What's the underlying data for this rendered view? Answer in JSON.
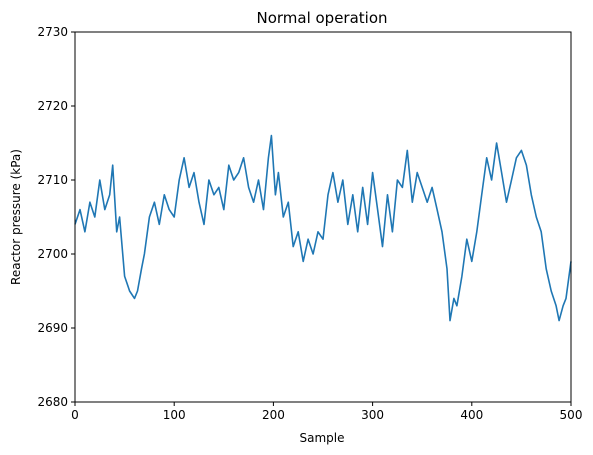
{
  "chart_data": {
    "type": "line",
    "title": "Normal operation",
    "xlabel": "Sample",
    "ylabel": "Reactor pressure (kPa)",
    "xlim": [
      0,
      500
    ],
    "ylim": [
      2680,
      2730
    ],
    "xticks": [
      0,
      100,
      200,
      300,
      400,
      500
    ],
    "yticks": [
      2680,
      2690,
      2700,
      2710,
      2720,
      2730
    ],
    "grid": false,
    "legend": "none",
    "series": [
      {
        "color": "#1f77b4",
        "x": [
          0,
          5,
          10,
          15,
          20,
          25,
          30,
          35,
          38,
          42,
          45,
          50,
          55,
          60,
          63,
          67,
          70,
          75,
          80,
          85,
          90,
          95,
          100,
          105,
          110,
          115,
          120,
          125,
          130,
          135,
          140,
          145,
          150,
          155,
          160,
          165,
          170,
          175,
          180,
          185,
          190,
          195,
          198,
          202,
          205,
          210,
          215,
          220,
          225,
          230,
          235,
          240,
          245,
          250,
          255,
          260,
          265,
          270,
          275,
          280,
          285,
          290,
          295,
          300,
          305,
          310,
          315,
          320,
          325,
          330,
          335,
          340,
          345,
          350,
          355,
          360,
          365,
          370,
          375,
          378,
          382,
          385,
          390,
          395,
          400,
          405,
          410,
          415,
          420,
          425,
          430,
          435,
          440,
          445,
          450,
          455,
          460,
          465,
          470,
          475,
          480,
          485,
          488,
          492,
          495,
          500
        ],
        "y": [
          2704,
          2706,
          2703,
          2707,
          2705,
          2710,
          2706,
          2708,
          2712,
          2703,
          2705,
          2697,
          2695,
          2694,
          2695,
          2698,
          2700,
          2705,
          2707,
          2704,
          2708,
          2706,
          2705,
          2710,
          2713,
          2709,
          2711,
          2707,
          2704,
          2710,
          2708,
          2709,
          2706,
          2712,
          2710,
          2711,
          2713,
          2709,
          2707,
          2710,
          2706,
          2713,
          2716,
          2708,
          2711,
          2705,
          2707,
          2701,
          2703,
          2699,
          2702,
          2700,
          2703,
          2702,
          2708,
          2711,
          2707,
          2710,
          2704,
          2708,
          2703,
          2709,
          2704,
          2711,
          2706,
          2701,
          2708,
          2703,
          2710,
          2709,
          2714,
          2707,
          2711,
          2709,
          2707,
          2709,
          2706,
          2703,
          2698,
          2691,
          2694,
          2693,
          2697,
          2702,
          2699,
          2703,
          2708,
          2713,
          2710,
          2715,
          2711,
          2707,
          2710,
          2713,
          2714,
          2712,
          2708,
          2705,
          2703,
          2698,
          2695,
          2693,
          2691,
          2693,
          2694,
          2699
        ]
      }
    ]
  }
}
